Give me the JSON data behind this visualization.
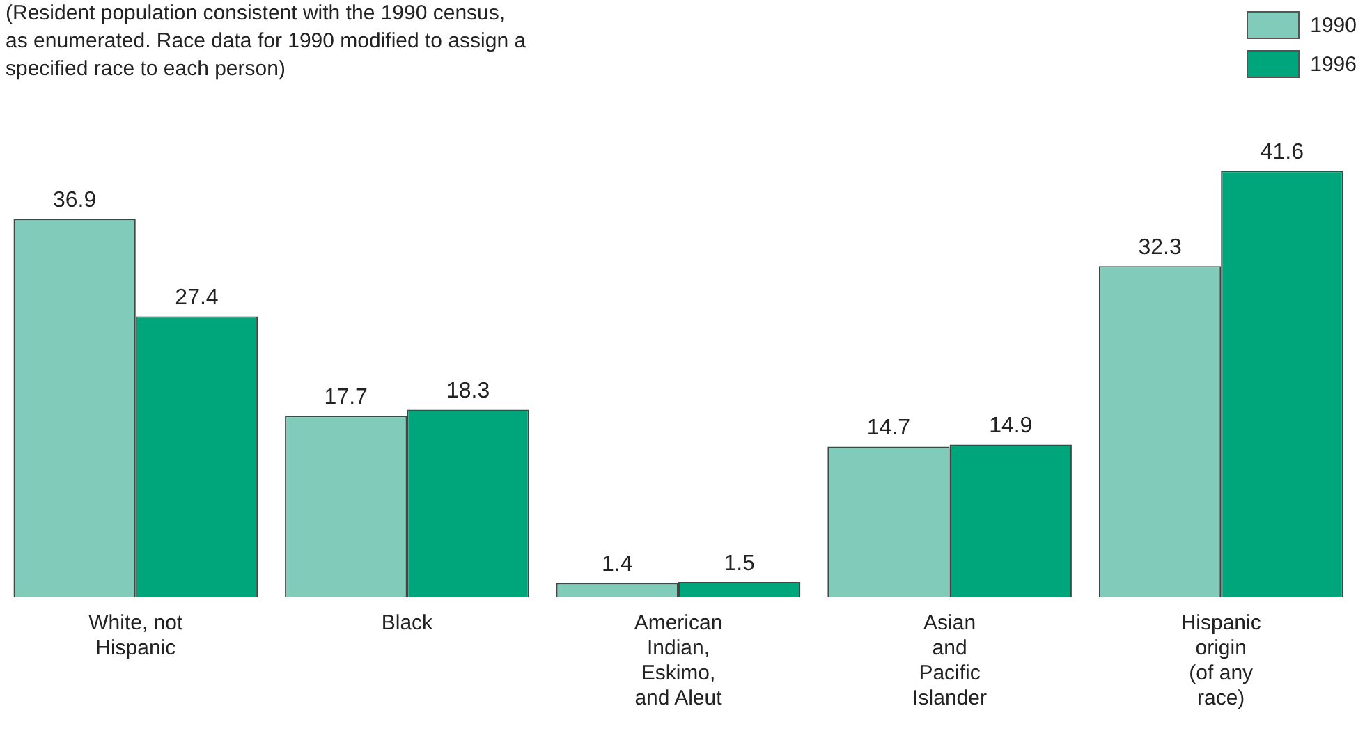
{
  "chart_data": {
    "type": "bar",
    "subtitle": "(Resident population consistent with the 1990 census,\nas enumerated.  Race data for 1990 modified to assign a\nspecified race to each person)",
    "categories": [
      "White, not\nHispanic",
      "Black",
      "American\nIndian,\nEskimo,\nand Aleut",
      "Asian\nand\nPacific\nIslander",
      "Hispanic\norigin\n(of any\nrace)"
    ],
    "series": [
      {
        "name": "1990",
        "color": "#80cbb9",
        "values": [
          36.9,
          17.7,
          1.4,
          14.7,
          32.3
        ]
      },
      {
        "name": "1996",
        "color": "#00a67b",
        "values": [
          27.4,
          18.3,
          1.5,
          14.9,
          41.6
        ]
      }
    ],
    "data_labels": true,
    "grid": false,
    "legend": "top right"
  }
}
